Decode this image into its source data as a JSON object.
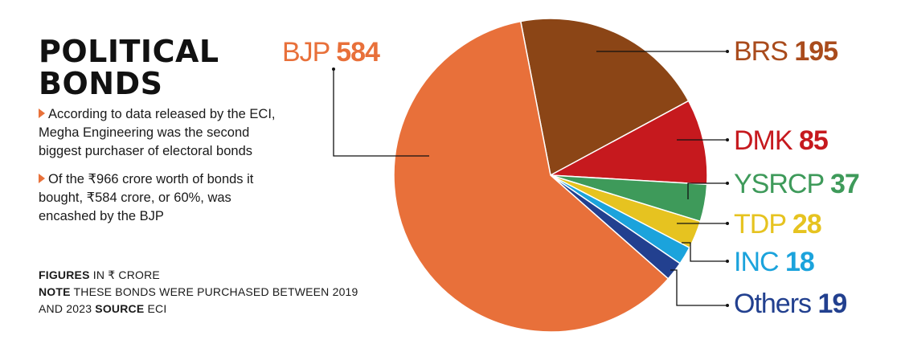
{
  "title_lines": [
    "POLITICAL",
    "BONDS"
  ],
  "bullets": [
    "According to data released by the ECI, Megha Engineering was the second biggest purchaser of electoral bonds",
    "Of the ₹966 crore worth of bonds it bought, ₹584 crore, or 60%, was encashed by the BJP"
  ],
  "footnote": {
    "figures_key": "FIGURES",
    "figures_text": " IN ₹ CRORE",
    "note_key": "NOTE",
    "note_text": " THESE BONDS WERE PURCHASED BETWEEN 2019 AND 2023 ",
    "source_key": "SOURCE",
    "source_text": " ECI"
  },
  "chart_data": {
    "type": "pie",
    "title": "",
    "units": "₹ crore",
    "categories": [
      "BRS",
      "DMK",
      "YSRCP",
      "TDP",
      "INC",
      "Others",
      "BJP"
    ],
    "values": [
      195,
      85,
      37,
      28,
      18,
      19,
      584
    ],
    "colors": [
      "#8b4516",
      "#c6191e",
      "#3e9a5a",
      "#e6c320",
      "#1ba3dc",
      "#22408f",
      "#e8703a"
    ],
    "labels": [
      {
        "name": "BJP",
        "value": "584",
        "color": "#e8703a"
      },
      {
        "name": "BRS",
        "value": "195",
        "color": "#a94b1c"
      },
      {
        "name": "DMK",
        "value": "85",
        "color": "#c6191e"
      },
      {
        "name": "YSRCP",
        "value": "37",
        "color": "#3e9a5a"
      },
      {
        "name": "TDP",
        "value": "28",
        "color": "#e6c320"
      },
      {
        "name": "INC",
        "value": "18",
        "color": "#1ba3dc"
      },
      {
        "name": "Others",
        "value": "19",
        "color": "#22408f"
      }
    ]
  }
}
